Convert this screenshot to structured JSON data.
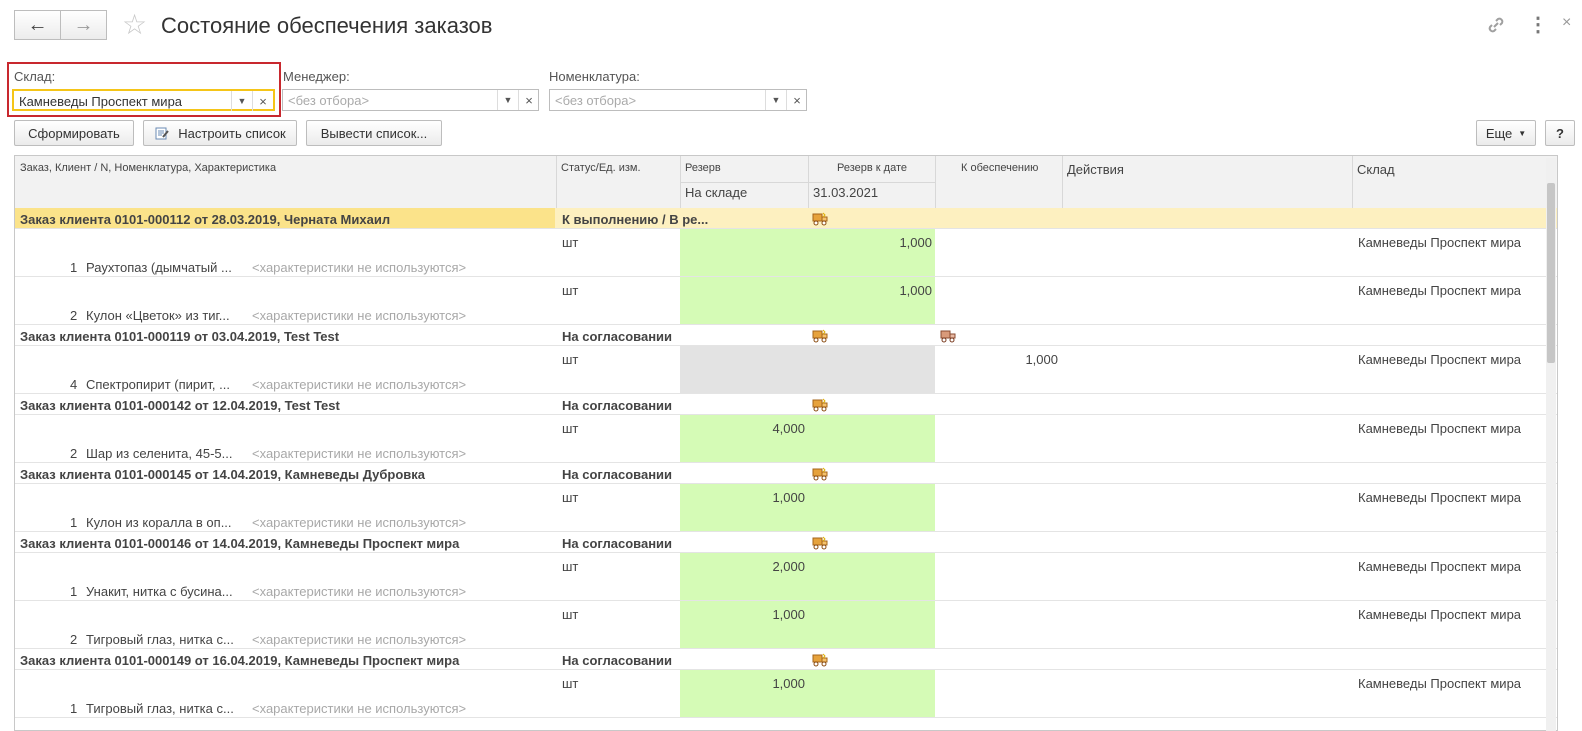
{
  "window": {
    "title": "Состояние обеспечения заказов",
    "back_icon": "←",
    "forward_icon": "→",
    "star_icon": "☆",
    "link_icon": "🔗",
    "more_icon": "⋮"
  },
  "filters": {
    "sklad": {
      "label": "Склад:",
      "value": "Камневеды Проспект мира"
    },
    "manager": {
      "label": "Менеджер:",
      "placeholder": "<без отбора>"
    },
    "nomenklatura": {
      "label": "Номенклатура:",
      "placeholder": "<без отбора>"
    }
  },
  "toolbar": {
    "form": "Сформировать",
    "configure": "Настроить список",
    "output": "Вывести список...",
    "more": "Еще",
    "help": "?"
  },
  "table": {
    "headers": {
      "order": "Заказ, Клиент / N, Номенклатура, Характеристика",
      "status": "Статус/Ед. изм.",
      "reserve": "Резерв",
      "reserve_by_date": "Резерв к дате",
      "to_provide": "К обеспечению",
      "actions": "Действия",
      "warehouse": "Склад",
      "in_stock": "На складе",
      "date": "31.03.2021"
    },
    "no_char": "<характеристики не используются>",
    "unit": "шт",
    "warehouse": "Камневеды Проспект мира",
    "orders": [
      {
        "title": "Заказ клиента 0101-000112 от 28.03.2019, Черната Михаил",
        "status": "К выполнению / В ре...",
        "items": [
          {
            "n": "1",
            "name": "Раухтопаз (дымчатый ...",
            "reserve_by_date": "1,000"
          },
          {
            "n": "2",
            "name": "Кулон «Цветок» из тиг...",
            "reserve_by_date": "1,000"
          }
        ]
      },
      {
        "title": "Заказ клиента 0101-000119 от 03.04.2019, Test Test",
        "status": "На согласовании",
        "items": [
          {
            "n": "4",
            "name": "Спектропирит (пирит, ...",
            "to_provide": "1,000"
          }
        ]
      },
      {
        "title": "Заказ клиента 0101-000142 от 12.04.2019, Test Test",
        "status": "На согласовании",
        "items": [
          {
            "n": "2",
            "name": "Шар из селенита, 45-5...",
            "in_stock": "4,000"
          }
        ]
      },
      {
        "title": "Заказ клиента 0101-000145 от 14.04.2019, Камневеды Дубровка",
        "status": "На согласовании",
        "items": [
          {
            "n": "1",
            "name": "Кулон из коралла в оп...",
            "in_stock": "1,000"
          }
        ]
      },
      {
        "title": "Заказ клиента 0101-000146 от 14.04.2019, Камневеды Проспект мира",
        "status": "На согласовании",
        "items": [
          {
            "n": "1",
            "name": "Унакит, нитка с бусина...",
            "in_stock": "2,000"
          },
          {
            "n": "2",
            "name": "Тигровый глаз, нитка с...",
            "in_stock": "1,000"
          }
        ]
      },
      {
        "title": "Заказ клиента 0101-000149 от 16.04.2019, Камневеды Проспект мира",
        "status": "На согласовании",
        "items": [
          {
            "n": "1",
            "name": "Тигровый глаз, нитка с...",
            "in_stock": "1,000"
          }
        ]
      }
    ]
  },
  "colors": {
    "reserve_green": "#d5fbb6",
    "selected_row": "#fdf0c0",
    "highlight_border": "#c8282e",
    "field_focus": "#f5c518"
  }
}
